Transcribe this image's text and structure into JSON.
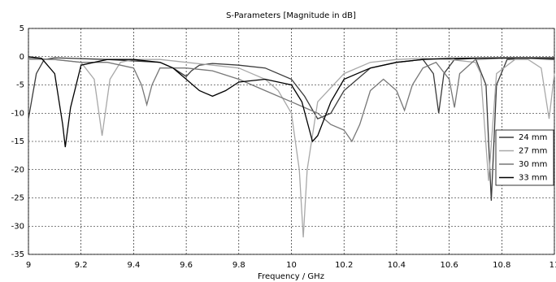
{
  "chart_data": {
    "type": "line",
    "title": "S-Parameters [Magnitude in dB]",
    "x_label": "Frequency / GHz",
    "xlim": [
      9,
      11
    ],
    "xticks": [
      9,
      9.2,
      9.4,
      9.6,
      9.8,
      10,
      10.2,
      10.4,
      10.6,
      10.8,
      11
    ],
    "ylim": [
      -35,
      5
    ],
    "yticks": [
      5,
      0,
      -5,
      -10,
      -15,
      -20,
      -25,
      -30,
      -35
    ],
    "grid": true,
    "legend": "lower-right",
    "series": [
      {
        "name": "24 mm",
        "color": "#3a3a3a",
        "x": [
          9,
          9.03,
          9.06,
          9.1,
          9.3,
          9.5,
          9.55,
          9.6,
          9.62,
          9.65,
          9.7,
          9.8,
          9.9,
          10,
          10.05,
          10.1,
          10.15,
          10.2,
          10.3,
          10.4,
          10.5,
          10.54,
          10.56,
          10.58,
          10.62,
          10.7,
          10.74,
          10.76,
          10.78,
          10.82,
          10.9,
          11
        ],
        "values": [
          -11,
          -3,
          -0.5,
          -0.2,
          -0.5,
          -1,
          -2,
          -3.5,
          -2.5,
          -1.5,
          -1.2,
          -1.5,
          -2,
          -4,
          -7,
          -11,
          -10,
          -6,
          -2,
          -1,
          -0.5,
          -3,
          -10,
          -3,
          -0.5,
          -0.3,
          -5,
          -25.5,
          -5,
          -0.5,
          -0.3,
          -0.5
        ]
      },
      {
        "name": "27 mm",
        "color": "#a8a8a8",
        "x": [
          9,
          9.1,
          9.2,
          9.25,
          9.28,
          9.31,
          9.35,
          9.4,
          9.5,
          9.6,
          9.7,
          9.8,
          9.9,
          9.95,
          10,
          10.03,
          10.045,
          10.06,
          10.1,
          10.2,
          10.3,
          10.4,
          10.5,
          10.6,
          10.7,
          10.72,
          10.75,
          10.78,
          10.85,
          10.9,
          10.95,
          10.98,
          11
        ],
        "values": [
          -0.5,
          -0.5,
          -1,
          -4,
          -14,
          -4,
          -1,
          -0.5,
          -0.5,
          -1,
          -1.5,
          -2,
          -4,
          -6,
          -10,
          -20,
          -32,
          -20,
          -8,
          -3,
          -1,
          -0.5,
          -0.3,
          -0.5,
          -1,
          -3,
          -22,
          -3,
          -0.5,
          -0.5,
          -2,
          -11,
          -3
        ]
      },
      {
        "name": "30 mm",
        "color": "#777777",
        "x": [
          9,
          9.1,
          9.2,
          9.3,
          9.4,
          9.43,
          9.45,
          9.47,
          9.5,
          9.6,
          9.7,
          9.8,
          9.9,
          10,
          10.1,
          10.15,
          10.2,
          10.23,
          10.26,
          10.3,
          10.35,
          10.4,
          10.43,
          10.46,
          10.5,
          10.55,
          10.6,
          10.62,
          10.64,
          10.7,
          10.8,
          11
        ],
        "values": [
          -0.3,
          -0.5,
          -1,
          -1,
          -2,
          -5,
          -8.5,
          -5,
          -2,
          -2,
          -2.5,
          -4,
          -6,
          -8,
          -10,
          -12,
          -13,
          -15,
          -12,
          -6,
          -4,
          -6,
          -9.5,
          -5,
          -2,
          -1,
          -4,
          -9,
          -3,
          -0.5,
          -0.3,
          -0.3
        ]
      },
      {
        "name": "33 mm",
        "color": "#000000",
        "x": [
          9,
          9.05,
          9.1,
          9.13,
          9.14,
          9.16,
          9.2,
          9.3,
          9.4,
          9.5,
          9.55,
          9.6,
          9.65,
          9.7,
          9.75,
          9.8,
          9.9,
          10,
          10.04,
          10.08,
          10.1,
          10.15,
          10.2,
          10.3,
          10.4,
          10.5,
          10.6,
          10.8,
          11
        ],
        "values": [
          0,
          -0.3,
          -3,
          -12,
          -16,
          -9,
          -1.5,
          -0.5,
          -0.5,
          -1,
          -2,
          -4,
          -6,
          -7,
          -6,
          -4.5,
          -4,
          -5,
          -8,
          -15,
          -14,
          -8,
          -4,
          -2,
          -1,
          -0.5,
          -0.3,
          -0.2,
          -0.2
        ]
      }
    ]
  }
}
